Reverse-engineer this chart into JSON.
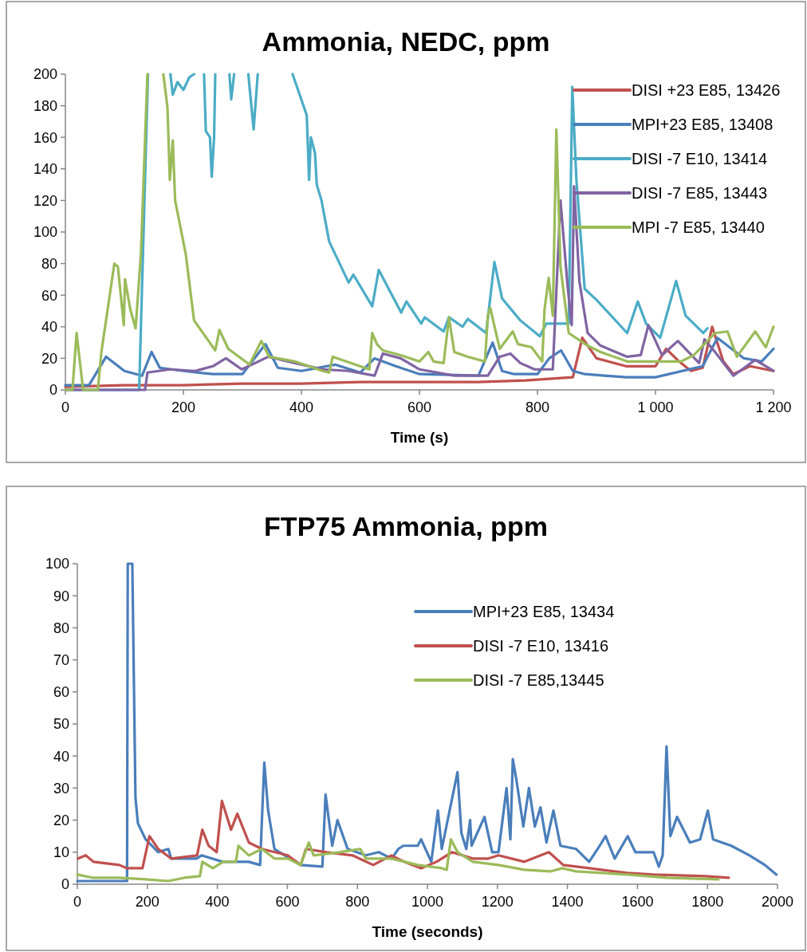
{
  "chart_data": [
    {
      "type": "line",
      "title": "Ammonia, NEDC, ppm",
      "xlabel": "Time (s)",
      "xlim": [
        0,
        1200
      ],
      "xticks": [
        0,
        200,
        400,
        600,
        800,
        {
          "value": 1000,
          "label": "1 000"
        },
        {
          "value": 1200,
          "label": "1 200"
        }
      ],
      "ylim": [
        0,
        200
      ],
      "yticks": [
        0,
        20,
        40,
        60,
        80,
        100,
        120,
        140,
        160,
        180,
        200
      ],
      "grid": false,
      "legend": "top right",
      "line_style": "solid",
      "marker": "none",
      "series": [
        {
          "name": "DISI +23 E85, 13426",
          "color": "#c0504d",
          "x": [
            0,
            100,
            200,
            300,
            400,
            500,
            600,
            700,
            780,
            820,
            860,
            876,
            900,
            950,
            1000,
            1018,
            1040,
            1060,
            1080,
            1096,
            1115,
            1132,
            1160,
            1200
          ],
          "values": [
            2,
            3,
            3,
            4,
            4,
            5,
            5,
            5,
            6,
            7,
            8,
            33,
            20,
            15,
            15,
            26,
            18,
            12,
            14,
            40,
            18,
            10,
            15,
            12
          ]
        },
        {
          "name": "MPI+23 E85, 13408",
          "color": "#4a7ebb",
          "x": [
            0,
            40,
            69,
            100,
            130,
            146,
            160,
            200,
            250,
            300,
            339,
            360,
            400,
            457,
            500,
            524,
            560,
            600,
            700,
            724,
            740,
            760,
            800,
            820,
            840,
            860,
            880,
            950,
            1000,
            1080,
            1105,
            1150,
            1180,
            1200
          ],
          "values": [
            3,
            3,
            21,
            12,
            9,
            24,
            14,
            12,
            10,
            10,
            29,
            14,
            12,
            16,
            11,
            20,
            15,
            10,
            9,
            30,
            12,
            10,
            10,
            20,
            25,
            12,
            10,
            8,
            8,
            15,
            33,
            20,
            18,
            26
          ]
        },
        {
          "name": "DISI -7 E10, 13414",
          "color": "#4bacc6",
          "x": [
            0,
            125,
            140,
            160,
            178,
            182,
            190,
            200,
            210,
            218,
            226,
            235,
            238,
            245,
            248,
            252,
            254,
            266,
            278,
            281,
            286,
            300,
            310,
            319,
            326,
            350,
            385,
            409,
            413,
            416,
            423,
            426,
            434,
            447,
            480,
            488,
            520,
            531,
            569,
            578,
            603,
            609,
            641,
            650,
            673,
            682,
            713,
            727,
            740,
            771,
            804,
            815,
            853,
            859,
            866,
            880,
            900,
            920,
            952,
            970,
            984,
            1008,
            1035,
            1051,
            1081,
            1088
          ],
          "values": [
            0,
            0,
            200,
            null,
            200,
            187,
            195,
            190,
            198,
            200,
            null,
            200,
            164,
            160,
            135,
            160,
            200,
            null,
            200,
            184,
            200,
            null,
            200,
            165,
            200,
            null,
            200,
            174,
            133,
            160,
            150,
            130,
            120,
            94,
            68,
            73,
            53,
            76,
            49,
            56,
            42,
            46,
            37,
            46,
            40,
            45,
            36,
            81,
            58,
            44,
            34,
            42,
            42,
            192,
            133,
            64,
            57,
            49,
            36,
            56,
            42,
            33,
            69,
            47,
            36,
            39
          ]
        },
        {
          "name": "DISI -7 E85, 13443",
          "color": "#8064a2",
          "x": [
            0,
            100,
            135,
            139,
            177,
            220,
            250,
            272,
            299,
            344,
            389,
            436,
            480,
            524,
            538,
            568,
            600,
            659,
            716,
            736,
            754,
            771,
            795,
            826,
            839,
            851,
            858,
            862,
            871,
            885,
            907,
            952,
            975,
            988,
            1011,
            1038,
            1074,
            1083,
            1101,
            1132,
            1169,
            1200
          ],
          "values": [
            0,
            0,
            0,
            11,
            13,
            12,
            15,
            20,
            13,
            21,
            17,
            13,
            12,
            9,
            23,
            20,
            13,
            9,
            9,
            21,
            23,
            17,
            13,
            13,
            120,
            66,
            41,
            129,
            69,
            36,
            28,
            21,
            22,
            41,
            22,
            31,
            17,
            32,
            24,
            9,
            19,
            12
          ]
        },
        {
          "name": "MPI -7 E85, 13440",
          "color": "#9bbb59",
          "x": [
            0,
            12,
            19,
            30,
            55,
            61,
            83,
            89,
            99,
            101,
            110,
            119,
            128,
            139,
            150,
            166,
            173,
            177,
            182,
            186,
            204,
            218,
            254,
            261,
            276,
            312,
            332,
            345,
            389,
            436,
            447,
            453,
            515,
            520,
            528,
            538,
            568,
            600,
            615,
            624,
            641,
            650,
            659,
            682,
            711,
            716,
            720,
            736,
            758,
            767,
            790,
            808,
            812,
            819,
            826,
            832,
            839,
            853,
            885,
            907,
            952,
            997,
            1043,
            1065,
            1101,
            1122,
            1138,
            1169,
            1187,
            1200
          ],
          "values": [
            0,
            0,
            36,
            0,
            0,
            24,
            80,
            78,
            41,
            70,
            51,
            39,
            86,
            200,
            null,
            200,
            179,
            133,
            158,
            120,
            86,
            44,
            25,
            38,
            26,
            16,
            31,
            21,
            18,
            12,
            11,
            21,
            13,
            36,
            29,
            25,
            22,
            18,
            24,
            18,
            17,
            46,
            24,
            21,
            18,
            47,
            52,
            26,
            37,
            29,
            27,
            18,
            51,
            71,
            47,
            165,
            78,
            36,
            28,
            24,
            18,
            18,
            18,
            22,
            36,
            37,
            21,
            37,
            27,
            40
          ]
        }
      ]
    },
    {
      "type": "line",
      "title": "FTP75 Ammonia, ppm",
      "xlabel": "Time (seconds)",
      "xlim": [
        0,
        2000
      ],
      "xticks": [
        0,
        200,
        400,
        600,
        800,
        1000,
        1200,
        1400,
        1600,
        1800,
        2000
      ],
      "ylim": [
        0,
        100
      ],
      "yticks": [
        0,
        10,
        20,
        30,
        40,
        50,
        60,
        70,
        80,
        90,
        100
      ],
      "grid": false,
      "legend": "top",
      "line_style": "solid",
      "marker": "none",
      "series": [
        {
          "name": "MPI+23 E85, 13434",
          "color": "#4a7ebb",
          "x": [
            0,
            100,
            142,
            144,
            157,
            166,
            173,
            195,
            231,
            260,
            268,
            340,
            355,
            415,
            489,
            522,
            534,
            545,
            563,
            637,
            700,
            709,
            728,
            743,
            772,
            824,
            861,
            898,
            917,
            931,
            972,
            982,
            1011,
            1030,
            1041,
            1086,
            1097,
            1111,
            1122,
            1126,
            1163,
            1185,
            1203,
            1226,
            1237,
            1244,
            1255,
            1274,
            1290,
            1307,
            1323,
            1340,
            1360,
            1380,
            1425,
            1462,
            1492,
            1509,
            1535,
            1572,
            1594,
            1646,
            1661,
            1672,
            1683,
            1694,
            1713,
            1750,
            1779,
            1801,
            1816,
            1868,
            1920,
            1964,
            1997
          ],
          "values": [
            1,
            1,
            1,
            100,
            100,
            27,
            19,
            14,
            10,
            11,
            8,
            8,
            9,
            7,
            7,
            6,
            38,
            23,
            11,
            6,
            5.5,
            28,
            12,
            20,
            11,
            9,
            10,
            8,
            11,
            12,
            12,
            14,
            7,
            23,
            11,
            35,
            16,
            11,
            20,
            12,
            21,
            10,
            10,
            30,
            14,
            39,
            32,
            18,
            30,
            18,
            24,
            13,
            23,
            12,
            11,
            7,
            12,
            15,
            8,
            15,
            10,
            10,
            5.5,
            9,
            43,
            15,
            21,
            13,
            14,
            23,
            14,
            12,
            9,
            6,
            3
          ]
        },
        {
          "name": "DISI -7 E10, 13416",
          "color": "#c0504d",
          "x": [
            2,
            24,
            46,
            120,
            142,
            186,
            206,
            231,
            268,
            342,
            357,
            375,
            398,
            413,
            439,
            457,
            490,
            527,
            601,
            638,
            653,
            712,
            786,
            845,
            897,
            934,
            982,
            1026,
            1070,
            1130,
            1174,
            1203,
            1277,
            1347,
            1388,
            1462,
            1572,
            1646,
            1794,
            1861
          ],
          "values": [
            8,
            9,
            7,
            6,
            5,
            5,
            15,
            11,
            8,
            9,
            17,
            12,
            10,
            26,
            17,
            22,
            13,
            11,
            9,
            6,
            11,
            10,
            9,
            6,
            9,
            7,
            5,
            7,
            10,
            8,
            8,
            9,
            7,
            10,
            6,
            5,
            3.5,
            3,
            2.5,
            2
          ]
        },
        {
          "name": "DISI -7 E85,13445",
          "color": "#9bbb59",
          "x": [
            0,
            46,
            120,
            195,
            260,
            305,
            350,
            357,
            387,
            416,
            453,
            460,
            490,
            527,
            563,
            601,
            638,
            661,
            675,
            749,
            808,
            824,
            898,
            972,
            1041,
            1055,
            1067,
            1086,
            1130,
            1203,
            1277,
            1351,
            1385,
            1425,
            1499,
            1572,
            1683,
            1831
          ],
          "values": [
            3,
            2,
            2,
            1.5,
            1,
            2,
            2.5,
            7,
            5,
            7,
            7,
            12,
            9,
            11,
            8,
            8,
            6,
            13,
            9,
            10,
            11,
            8,
            8,
            6,
            5,
            4.5,
            14,
            10,
            7,
            6,
            4.5,
            4,
            5,
            4,
            3.5,
            3,
            2,
            1.5
          ]
        }
      ]
    }
  ]
}
